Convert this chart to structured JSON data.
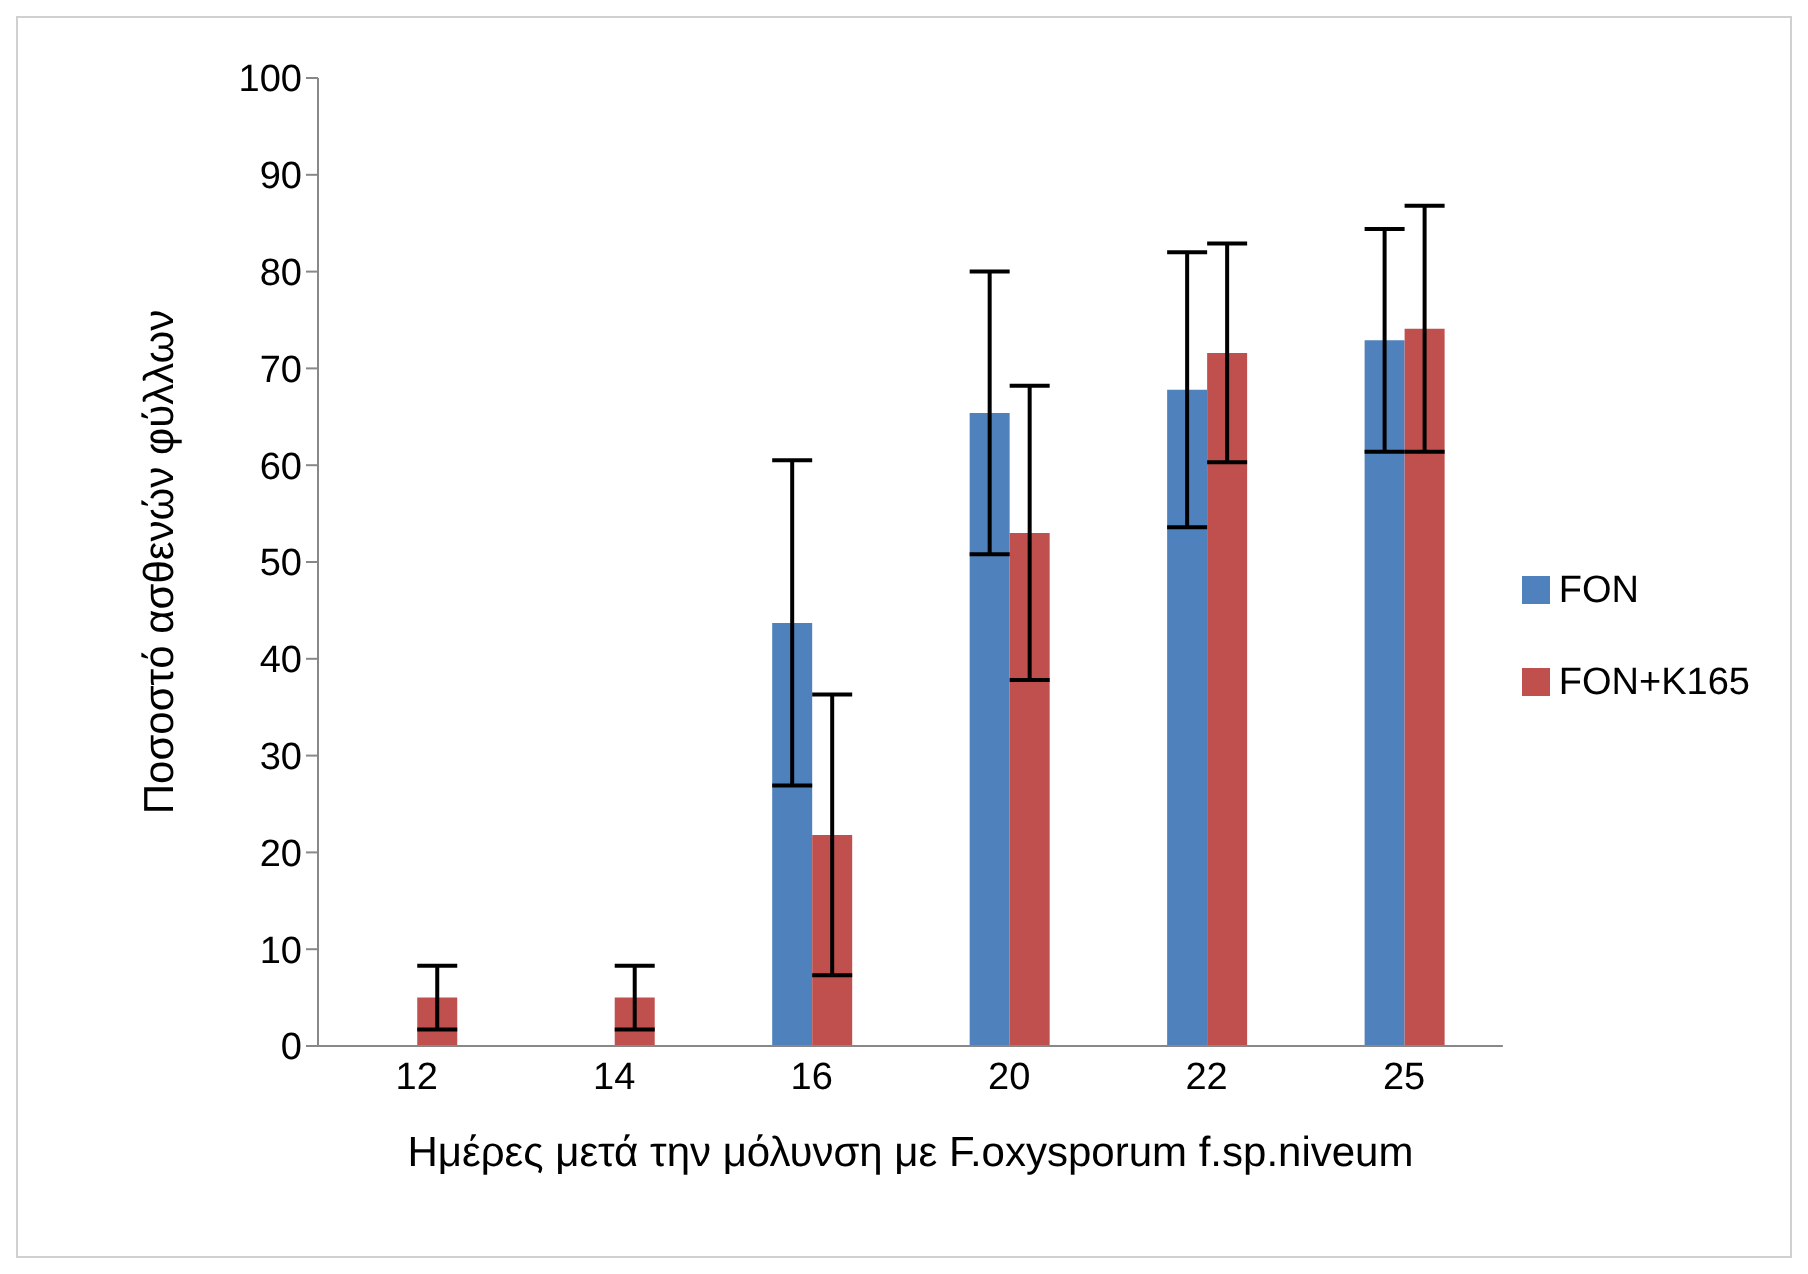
{
  "chart_data": {
    "type": "bar",
    "xlabel": "Ημέρες μετά την μόλυνση με F.oxysporum f.sp.niveum",
    "ylabel": "Ποσοστό ασθενών φύλλων",
    "categories": [
      "12",
      "14",
      "16",
      "20",
      "22",
      "25"
    ],
    "series": [
      {
        "name": "FON",
        "color": "#4f81bd",
        "values": [
          0,
          0,
          43.7,
          65.4,
          67.8,
          72.9
        ],
        "errors": [
          null,
          null,
          16.8,
          14.6,
          14.2,
          11.5
        ]
      },
      {
        "name": "FON+K165",
        "color": "#c0504d",
        "values": [
          5,
          5,
          21.8,
          53,
          71.6,
          74.1
        ],
        "errors": [
          3.3,
          3.3,
          14.5,
          15.2,
          11.3,
          12.7
        ]
      }
    ],
    "ylim": [
      0,
      100
    ],
    "yticks": [
      0,
      10,
      20,
      30,
      40,
      50,
      60,
      70,
      80,
      90,
      100
    ],
    "grid": false,
    "legend": "right"
  }
}
